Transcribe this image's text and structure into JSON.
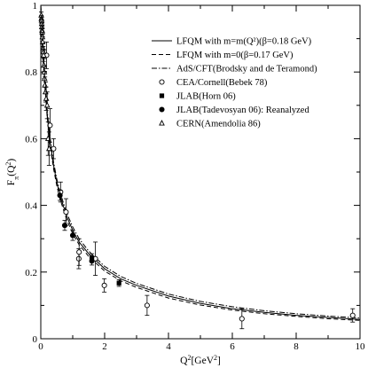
{
  "chart_data": {
    "type": "line",
    "xlabel": "Q",
    "xlabel_sup": "2",
    "xlabel_unit_pre": "[GeV",
    "xlabel_unit_sup": "2",
    "xlabel_unit_post": "]",
    "ylabel": "F",
    "ylabel_sub": "π",
    "ylabel_args": "(Q",
    "ylabel_args_sup": "2",
    "ylabel_args_close": ")",
    "xlim": [
      0,
      10
    ],
    "ylim": [
      0,
      1
    ],
    "x_ticks": [
      0,
      2,
      4,
      6,
      8,
      10
    ],
    "y_ticks": [
      0,
      0.2,
      0.4,
      0.6,
      0.8,
      1
    ],
    "y_tick_labels": [
      "0",
      "0.2",
      "0.4",
      "0.6",
      "0.8",
      "1"
    ],
    "grid": false,
    "legend_position": "top-right",
    "curves": [
      {
        "name": "LFQM with m=m(Q²)(β=0.18 GeV)",
        "style": "solid",
        "x": [
          0,
          0.05,
          0.1,
          0.2,
          0.3,
          0.4,
          0.5,
          0.6,
          0.8,
          1.0,
          1.2,
          1.5,
          2.0,
          2.5,
          3.0,
          4.0,
          5.0,
          6.0,
          7.0,
          8.0,
          9.0,
          10.0
        ],
        "y": [
          1.0,
          0.88,
          0.8,
          0.675,
          0.585,
          0.52,
          0.47,
          0.43,
          0.37,
          0.325,
          0.29,
          0.255,
          0.21,
          0.18,
          0.16,
          0.128,
          0.106,
          0.09,
          0.079,
          0.07,
          0.064,
          0.058
        ]
      },
      {
        "name": "LFQM with m=0(β=0.17 GeV)",
        "style": "dashed",
        "x": [
          0,
          0.05,
          0.1,
          0.2,
          0.3,
          0.4,
          0.5,
          0.6,
          0.8,
          1.0,
          1.2,
          1.5,
          2.0,
          2.5,
          3.0,
          4.0,
          5.0,
          6.0,
          7.0,
          8.0,
          9.0,
          10.0
        ],
        "y": [
          1.0,
          0.875,
          0.79,
          0.665,
          0.575,
          0.51,
          0.46,
          0.42,
          0.36,
          0.315,
          0.282,
          0.247,
          0.203,
          0.174,
          0.154,
          0.122,
          0.101,
          0.086,
          0.075,
          0.067,
          0.06,
          0.055
        ]
      },
      {
        "name": "AdS/CFT(Brodsky and de Teramond)",
        "style": "dashdot",
        "x": [
          0,
          0.05,
          0.1,
          0.2,
          0.3,
          0.4,
          0.5,
          0.6,
          0.8,
          1.0,
          1.2,
          1.5,
          2.0,
          2.5,
          3.0,
          4.0,
          5.0,
          6.0,
          7.0,
          8.0,
          9.0,
          10.0
        ],
        "y": [
          1.0,
          0.885,
          0.805,
          0.685,
          0.595,
          0.53,
          0.48,
          0.44,
          0.38,
          0.335,
          0.3,
          0.263,
          0.217,
          0.187,
          0.166,
          0.134,
          0.112,
          0.096,
          0.084,
          0.075,
          0.068,
          0.062
        ]
      }
    ],
    "datasets": [
      {
        "name": "CEA/Cornell(Bebek 78)",
        "marker": "circle-open",
        "points": [
          {
            "x": 0.18,
            "y": 0.85,
            "err": 0.04
          },
          {
            "x": 0.29,
            "y": 0.64,
            "err": 0.05
          },
          {
            "x": 0.4,
            "y": 0.57,
            "err": 0.03
          },
          {
            "x": 0.62,
            "y": 0.44,
            "err": 0.03
          },
          {
            "x": 0.79,
            "y": 0.38,
            "err": 0.04
          },
          {
            "x": 1.19,
            "y": 0.24,
            "err": 0.03
          },
          {
            "x": 1.2,
            "y": 0.26,
            "err": 0.04
          },
          {
            "x": 1.71,
            "y": 0.24,
            "err": 0.05
          },
          {
            "x": 1.99,
            "y": 0.16,
            "err": 0.02
          },
          {
            "x": 3.33,
            "y": 0.1,
            "err": 0.03
          },
          {
            "x": 6.3,
            "y": 0.06,
            "err": 0.03
          },
          {
            "x": 9.77,
            "y": 0.07,
            "err": 0.02
          }
        ]
      },
      {
        "name": "JLAB(Horn 06)",
        "marker": "square-filled",
        "points": [
          {
            "x": 1.6,
            "y": 0.243,
            "err": 0.012
          },
          {
            "x": 2.45,
            "y": 0.167,
            "err": 0.01
          }
        ]
      },
      {
        "name": "JLAB(Tadevosyan 06): Reanalyzed",
        "marker": "circle-filled",
        "points": [
          {
            "x": 0.6,
            "y": 0.43,
            "err": 0.015
          },
          {
            "x": 0.75,
            "y": 0.34,
            "err": 0.015
          },
          {
            "x": 1.0,
            "y": 0.31,
            "err": 0.015
          },
          {
            "x": 1.6,
            "y": 0.233,
            "err": 0.012
          }
        ]
      },
      {
        "name": "CERN(Amendolia 86)",
        "marker": "triangle-open",
        "points": [
          {
            "x": 0.015,
            "y": 0.97,
            "err": 0.01
          },
          {
            "x": 0.02,
            "y": 0.96,
            "err": 0.01
          },
          {
            "x": 0.025,
            "y": 0.955,
            "err": 0.01
          },
          {
            "x": 0.03,
            "y": 0.945,
            "err": 0.012
          },
          {
            "x": 0.035,
            "y": 0.935,
            "err": 0.012
          },
          {
            "x": 0.04,
            "y": 0.925,
            "err": 0.013
          },
          {
            "x": 0.045,
            "y": 0.92,
            "err": 0.013
          },
          {
            "x": 0.05,
            "y": 0.905,
            "err": 0.014
          },
          {
            "x": 0.06,
            "y": 0.89,
            "err": 0.015
          },
          {
            "x": 0.07,
            "y": 0.87,
            "err": 0.016
          },
          {
            "x": 0.08,
            "y": 0.86,
            "err": 0.017
          },
          {
            "x": 0.09,
            "y": 0.85,
            "err": 0.018
          },
          {
            "x": 0.1,
            "y": 0.82,
            "err": 0.02
          },
          {
            "x": 0.11,
            "y": 0.8,
            "err": 0.02
          },
          {
            "x": 0.12,
            "y": 0.78,
            "err": 0.022
          },
          {
            "x": 0.13,
            "y": 0.76,
            "err": 0.025
          },
          {
            "x": 0.15,
            "y": 0.74,
            "err": 0.03
          },
          {
            "x": 0.17,
            "y": 0.72,
            "err": 0.035
          },
          {
            "x": 0.2,
            "y": 0.7,
            "err": 0.04
          },
          {
            "x": 0.23,
            "y": 0.6,
            "err": 0.05
          },
          {
            "x": 0.26,
            "y": 0.57,
            "err": 0.05
          }
        ]
      }
    ]
  }
}
